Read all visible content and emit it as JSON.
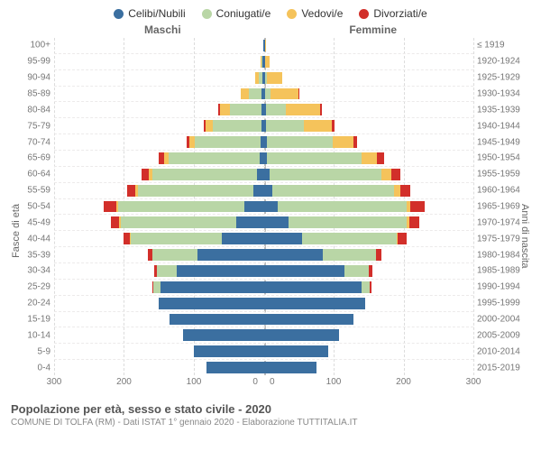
{
  "legend": [
    {
      "label": "Celibi/Nubili",
      "color": "#3b6fa0"
    },
    {
      "label": "Coniugati/e",
      "color": "#b9d6a6"
    },
    {
      "label": "Vedovi/e",
      "color": "#f5c35b"
    },
    {
      "label": "Divorziati/e",
      "color": "#d22f2a"
    }
  ],
  "chart": {
    "type": "population-pyramid",
    "left_title": "Maschi",
    "right_title": "Femmine",
    "yaxis_left_title": "Fasce di età",
    "yaxis_right_title": "Anni di nascita",
    "x_max": 300,
    "x_ticks": [
      300,
      200,
      100,
      0,
      0,
      100,
      200,
      300
    ],
    "grid_color": "#dcdcdc",
    "background": "#ffffff",
    "series_colors": [
      "#3b6fa0",
      "#b9d6a6",
      "#f5c35b",
      "#d22f2a"
    ],
    "age_labels": [
      "100+",
      "95-99",
      "90-94",
      "85-89",
      "80-84",
      "75-79",
      "70-74",
      "65-69",
      "60-64",
      "55-59",
      "50-54",
      "45-49",
      "40-44",
      "35-39",
      "30-34",
      "25-29",
      "20-24",
      "15-19",
      "10-14",
      "5-9",
      "0-4"
    ],
    "birth_labels": [
      "≤ 1919",
      "1920-1924",
      "1925-1929",
      "1930-1934",
      "1935-1939",
      "1940-1944",
      "1945-1949",
      "1950-1954",
      "1955-1959",
      "1960-1964",
      "1965-1969",
      "1970-1974",
      "1975-1979",
      "1980-1984",
      "1985-1989",
      "1990-1994",
      "1995-1999",
      "2000-2004",
      "2005-2009",
      "2010-2014",
      "2015-2019"
    ],
    "male": [
      [
        1,
        0,
        0,
        0
      ],
      [
        2,
        1,
        2,
        0
      ],
      [
        2,
        5,
        5,
        0
      ],
      [
        3,
        18,
        12,
        0
      ],
      [
        3,
        45,
        15,
        2
      ],
      [
        3,
        70,
        10,
        3
      ],
      [
        4,
        95,
        8,
        4
      ],
      [
        6,
        130,
        6,
        8
      ],
      [
        10,
        150,
        5,
        10
      ],
      [
        15,
        165,
        4,
        12
      ],
      [
        28,
        180,
        3,
        18
      ],
      [
        40,
        165,
        2,
        12
      ],
      [
        60,
        130,
        1,
        10
      ],
      [
        95,
        65,
        0,
        6
      ],
      [
        125,
        28,
        0,
        4
      ],
      [
        148,
        10,
        0,
        2
      ],
      [
        150,
        0,
        0,
        0
      ],
      [
        135,
        0,
        0,
        0
      ],
      [
        115,
        0,
        0,
        0
      ],
      [
        100,
        0,
        0,
        0
      ],
      [
        82,
        0,
        0,
        0
      ]
    ],
    "female": [
      [
        2,
        0,
        1,
        0
      ],
      [
        2,
        0,
        6,
        0
      ],
      [
        2,
        2,
        22,
        0
      ],
      [
        2,
        8,
        40,
        1
      ],
      [
        3,
        28,
        50,
        2
      ],
      [
        3,
        55,
        40,
        3
      ],
      [
        4,
        95,
        30,
        5
      ],
      [
        5,
        135,
        22,
        10
      ],
      [
        8,
        160,
        15,
        12
      ],
      [
        12,
        175,
        8,
        15
      ],
      [
        20,
        185,
        5,
        20
      ],
      [
        35,
        170,
        3,
        15
      ],
      [
        55,
        135,
        2,
        12
      ],
      [
        85,
        75,
        1,
        8
      ],
      [
        115,
        35,
        0,
        5
      ],
      [
        140,
        12,
        0,
        2
      ],
      [
        145,
        0,
        0,
        0
      ],
      [
        128,
        0,
        0,
        0
      ],
      [
        108,
        0,
        0,
        0
      ],
      [
        92,
        0,
        0,
        0
      ],
      [
        75,
        0,
        0,
        0
      ]
    ]
  },
  "footer": {
    "title": "Popolazione per età, sesso e stato civile - 2020",
    "subtitle": "COMUNE DI TOLFA (RM) - Dati ISTAT 1° gennaio 2020 - Elaborazione TUTTITALIA.IT"
  }
}
